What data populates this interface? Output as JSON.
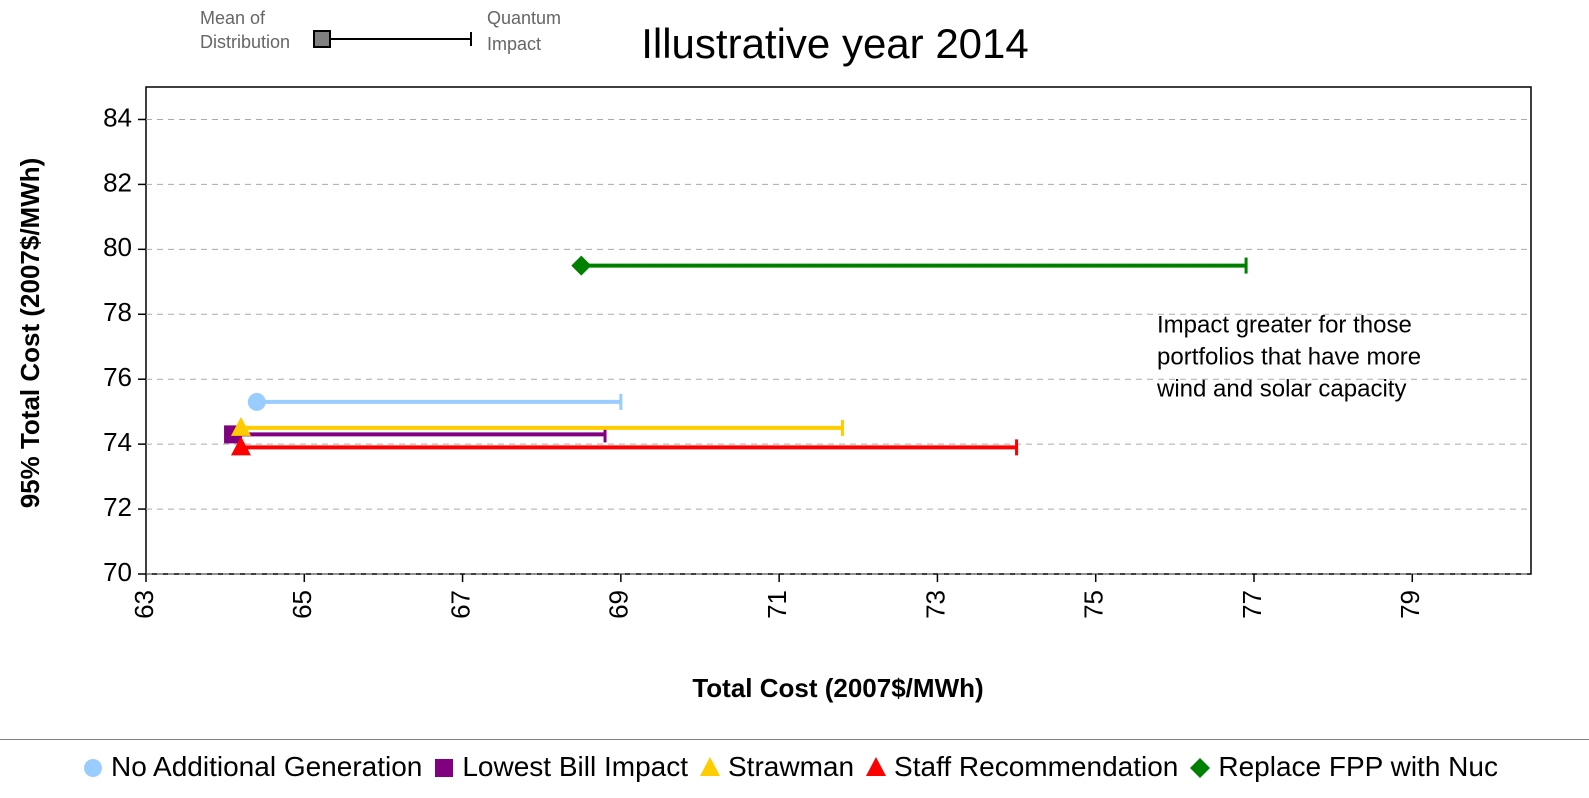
{
  "chart_data": {
    "type": "scatter",
    "title": "Illustrative year 2014",
    "xlabel": "Total Cost (2007$/MWh)",
    "ylabel": "95% Total Cost (2007$/MWh)",
    "xlim": [
      63,
      80.5
    ],
    "xticks": [
      63,
      65,
      67,
      69,
      71,
      73,
      75,
      77,
      79
    ],
    "ylim": [
      70,
      85
    ],
    "yticks": [
      70,
      72,
      74,
      76,
      78,
      80,
      82,
      84
    ],
    "grid": true,
    "key": {
      "mean_label": [
        "Mean of",
        "Distribution"
      ],
      "error_label": [
        "Quantum",
        "Impact"
      ]
    },
    "annotation": [
      "Impact greater for those",
      "portfolios that have more",
      "wind and solar capacity"
    ],
    "series": [
      {
        "name": "No Additional Generation",
        "color": "#99ccff",
        "marker": "circle",
        "x": [
          64.4
        ],
        "values": [
          75.3
        ],
        "xerr": [
          4.6
        ]
      },
      {
        "name": "Lowest Bill Impact",
        "color": "#800080",
        "marker": "square",
        "x": [
          64.1
        ],
        "values": [
          74.3
        ],
        "xerr": [
          4.7
        ]
      },
      {
        "name": "Strawman",
        "color": "#ffcc00",
        "marker": "triangle",
        "x": [
          64.2
        ],
        "values": [
          74.5
        ],
        "xerr": [
          7.6
        ]
      },
      {
        "name": "Staff Recommendation",
        "color": "#ff0000",
        "marker": "triangle",
        "x": [
          64.2
        ],
        "values": [
          73.9
        ],
        "xerr": [
          9.8
        ]
      },
      {
        "name": "Replace FPP with Nuc",
        "color": "#008000",
        "marker": "diamond",
        "x": [
          68.5
        ],
        "values": [
          79.5
        ],
        "xerr": [
          8.4
        ]
      }
    ]
  }
}
